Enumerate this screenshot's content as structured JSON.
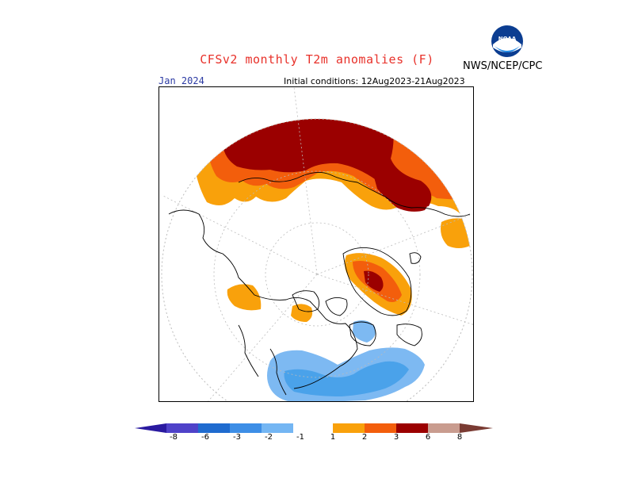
{
  "title": "CFSv2 monthly T2m anomalies (F)",
  "agency": "NWS/NCEP/CPC",
  "logo_text": "NOAA",
  "valid_month": "Jan 2024",
  "initial_conditions": "Initial conditions: 12Aug2023-21Aug2023",
  "colors": {
    "title": "#e8312a",
    "month": "#2b3aa3",
    "ocean": "#ffffff",
    "coast": "#000000"
  },
  "colorbar": {
    "ticks": [
      "-8",
      "-6",
      "-3",
      "-2",
      "-1",
      "1",
      "2",
      "3",
      "6",
      "8"
    ],
    "colors": [
      "#2a1aa0",
      "#4f42c9",
      "#1f6bcf",
      "#3d8ee6",
      "#74b6f3",
      "#ffffff",
      "#f9a10b",
      "#f35e0c",
      "#e11c0c",
      "#9b0000",
      "#c99c8f",
      "#7a3b33"
    ]
  },
  "legend": {
    "neg_strong": "#4aa2ea",
    "neg_weak": "#7db9f2",
    "pos_weak": "#f9a10b",
    "pos_mid": "#f35e0c",
    "pos_strong": "#9b0000"
  }
}
